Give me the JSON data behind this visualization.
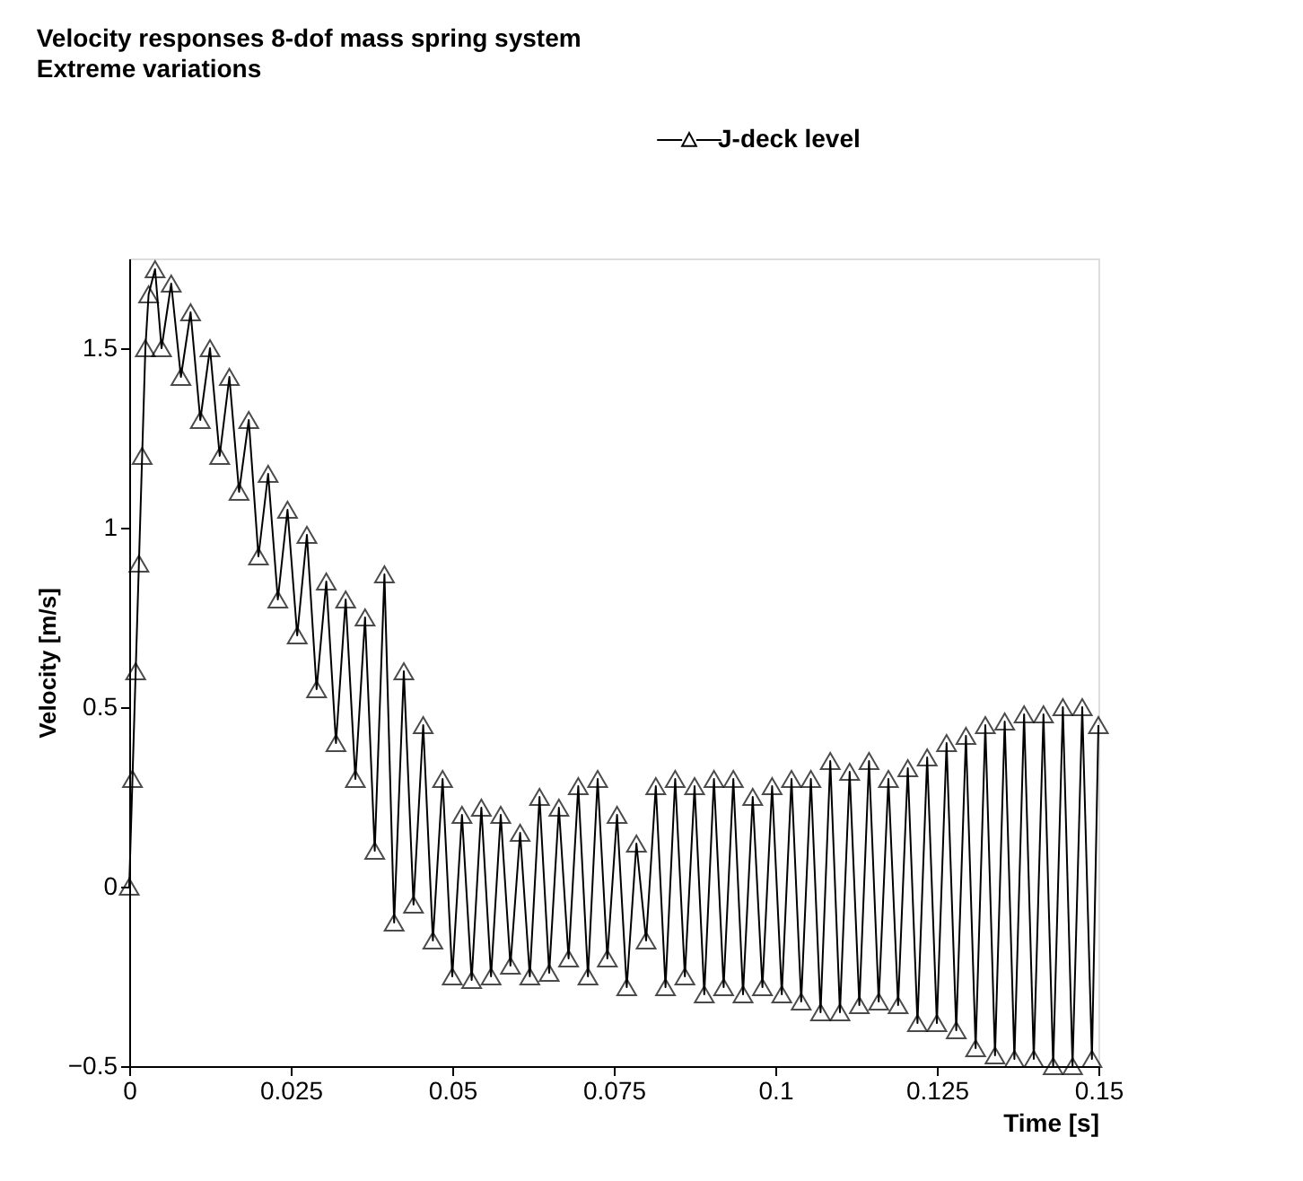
{
  "chart_data": {
    "type": "line",
    "title": "Velocity responses 8-dof mass spring system",
    "subtitle": "Extreme variations",
    "xlabel": "Time [s]",
    "ylabel": "Velocity [m/s]",
    "xlim": [
      0,
      0.15
    ],
    "xticks": [
      0,
      0.025,
      0.05,
      0.075,
      0.1,
      0.125,
      0.15
    ],
    "ylim": [
      -0.5,
      1.75
    ],
    "yticks": [
      -0.5,
      0,
      0.5,
      1,
      1.5
    ],
    "grid": false,
    "legend": "top right",
    "marker": "triangle",
    "line_style": "solid",
    "series": [
      {
        "name": "J-deck level",
        "color": "#000000",
        "x": [
          0,
          0.0005,
          0.001,
          0.0015,
          0.002,
          0.0025,
          0.003,
          0.004,
          0.005,
          0.0065,
          0.008,
          0.0095,
          0.011,
          0.0125,
          0.014,
          0.0155,
          0.017,
          0.0185,
          0.02,
          0.0215,
          0.023,
          0.0245,
          0.026,
          0.0275,
          0.029,
          0.0305,
          0.032,
          0.0335,
          0.035,
          0.0365,
          0.038,
          0.0395,
          0.041,
          0.0425,
          0.044,
          0.0455,
          0.047,
          0.0485,
          0.05,
          0.0515,
          0.053,
          0.0545,
          0.056,
          0.0575,
          0.059,
          0.0605,
          0.062,
          0.0635,
          0.065,
          0.0665,
          0.068,
          0.0695,
          0.071,
          0.0725,
          0.074,
          0.0755,
          0.077,
          0.0785,
          0.08,
          0.0815,
          0.083,
          0.0845,
          0.086,
          0.0875,
          0.089,
          0.0905,
          0.092,
          0.0935,
          0.095,
          0.0965,
          0.098,
          0.0995,
          0.101,
          0.1025,
          0.104,
          0.1055,
          0.107,
          0.1085,
          0.11,
          0.1115,
          0.113,
          0.1145,
          0.116,
          0.1175,
          0.119,
          0.1205,
          0.122,
          0.1235,
          0.125,
          0.1265,
          0.128,
          0.1295,
          0.131,
          0.1325,
          0.134,
          0.1355,
          0.137,
          0.1385,
          0.14,
          0.1415,
          0.143,
          0.1445,
          0.146,
          0.1475,
          0.149,
          0.15
        ],
        "values": [
          0,
          0.3,
          0.6,
          0.9,
          1.2,
          1.5,
          1.65,
          1.72,
          1.5,
          1.68,
          1.42,
          1.6,
          1.3,
          1.5,
          1.2,
          1.42,
          1.1,
          1.3,
          0.92,
          1.15,
          0.8,
          1.05,
          0.7,
          0.98,
          0.55,
          0.85,
          0.4,
          0.8,
          0.3,
          0.75,
          0.1,
          0.87,
          -0.1,
          0.6,
          -0.05,
          0.45,
          -0.15,
          0.3,
          -0.25,
          0.2,
          -0.26,
          0.22,
          -0.25,
          0.2,
          -0.22,
          0.15,
          -0.25,
          0.25,
          -0.24,
          0.22,
          -0.2,
          0.28,
          -0.25,
          0.3,
          -0.2,
          0.2,
          -0.28,
          0.12,
          -0.15,
          0.28,
          -0.28,
          0.3,
          -0.25,
          0.28,
          -0.3,
          0.3,
          -0.28,
          0.3,
          -0.3,
          0.25,
          -0.28,
          0.28,
          -0.3,
          0.3,
          -0.32,
          0.3,
          -0.35,
          0.35,
          -0.35,
          0.32,
          -0.33,
          0.35,
          -0.32,
          0.3,
          -0.33,
          0.33,
          -0.38,
          0.36,
          -0.38,
          0.4,
          -0.4,
          0.42,
          -0.45,
          0.45,
          -0.47,
          0.46,
          -0.48,
          0.48,
          -0.48,
          0.48,
          -0.5,
          0.5,
          -0.5,
          0.5,
          -0.48,
          0.45
        ]
      }
    ]
  }
}
